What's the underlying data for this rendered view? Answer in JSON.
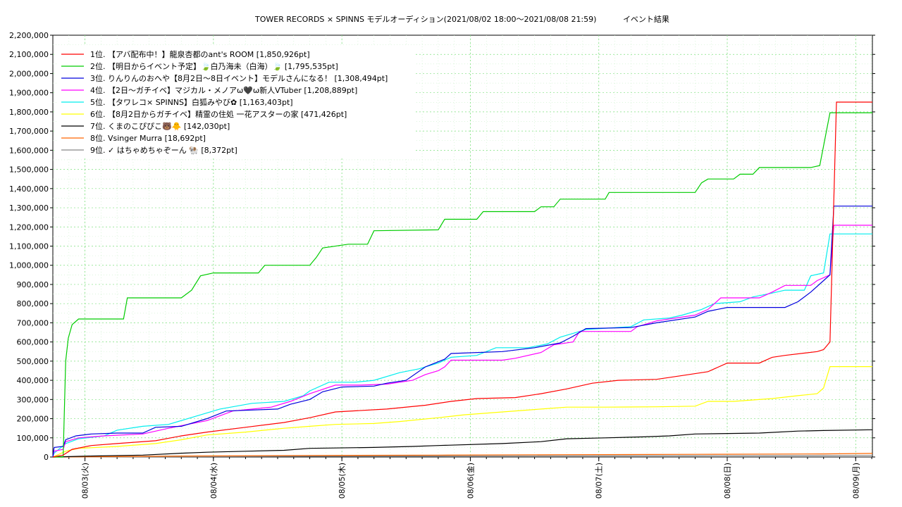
{
  "chart_data": {
    "type": "line",
    "title": "TOWER RECORDS × SPINNS モデルオーディション(2021/08/02 18:00〜2021/08/08 21:59)",
    "subtitle": "イベント結果",
    "xlabel": "",
    "ylabel": "",
    "xlim": [
      0,
      6.38
    ],
    "ylim": [
      0,
      2200000
    ],
    "y_ticks": [
      "0",
      "100,000",
      "200,000",
      "300,000",
      "400,000",
      "500,000",
      "600,000",
      "700,000",
      "800,000",
      "900,000",
      "1,000,000",
      "1,100,000",
      "1,200,000",
      "1,300,000",
      "1,400,000",
      "1,500,000",
      "1,600,000",
      "1,700,000",
      "1,800,000",
      "1,900,000",
      "2,000,000",
      "2,100,000",
      "2,200,000"
    ],
    "x_ticks": [
      {
        "x": 0.25,
        "label": "08/03(火)"
      },
      {
        "x": 1.25,
        "label": "08/04(水)"
      },
      {
        "x": 2.25,
        "label": "08/05(木)"
      },
      {
        "x": 3.25,
        "label": "08/06(金)"
      },
      {
        "x": 4.25,
        "label": "08/07(土)"
      },
      {
        "x": 5.25,
        "label": "08/08(日)"
      },
      {
        "x": 6.25,
        "label": "08/09(月)"
      }
    ],
    "grid": true,
    "legend_position": "top-left",
    "series": [
      {
        "name": "1位. 【アバ配布中！】龍泉杏都のant's ROOM [1,850,926pt]",
        "color": "#ff0000",
        "points": [
          [
            0,
            0
          ],
          [
            0.08,
            10000
          ],
          [
            0.15,
            40000
          ],
          [
            0.3,
            60000
          ],
          [
            0.5,
            70000
          ],
          [
            0.8,
            85000
          ],
          [
            1.0,
            110000
          ],
          [
            1.2,
            130000
          ],
          [
            1.5,
            155000
          ],
          [
            1.8,
            180000
          ],
          [
            2.0,
            205000
          ],
          [
            2.2,
            235000
          ],
          [
            2.6,
            250000
          ],
          [
            2.9,
            270000
          ],
          [
            3.1,
            290000
          ],
          [
            3.3,
            305000
          ],
          [
            3.6,
            310000
          ],
          [
            3.8,
            330000
          ],
          [
            4.0,
            355000
          ],
          [
            4.2,
            385000
          ],
          [
            4.4,
            400000
          ],
          [
            4.7,
            405000
          ],
          [
            4.9,
            425000
          ],
          [
            5.1,
            445000
          ],
          [
            5.25,
            490000
          ],
          [
            5.5,
            490000
          ],
          [
            5.6,
            520000
          ],
          [
            5.7,
            530000
          ],
          [
            5.95,
            550000
          ],
          [
            6.0,
            560000
          ],
          [
            6.05,
            600000
          ],
          [
            6.1,
            1850926
          ],
          [
            6.38,
            1850926
          ]
        ]
      },
      {
        "name": "2位. 【明日からイベント予定】🍃白乃海未（白海）🍃 [1,795,535pt]",
        "color": "#00cc00",
        "points": [
          [
            0,
            0
          ],
          [
            0.08,
            0
          ],
          [
            0.1,
            500000
          ],
          [
            0.12,
            620000
          ],
          [
            0.15,
            690000
          ],
          [
            0.2,
            720000
          ],
          [
            0.55,
            720000
          ],
          [
            0.58,
            830000
          ],
          [
            1.0,
            830000
          ],
          [
            1.08,
            870000
          ],
          [
            1.15,
            945000
          ],
          [
            1.25,
            960000
          ],
          [
            1.6,
            960000
          ],
          [
            1.65,
            1000000
          ],
          [
            2.0,
            1000000
          ],
          [
            2.05,
            1040000
          ],
          [
            2.1,
            1090000
          ],
          [
            2.3,
            1110000
          ],
          [
            2.45,
            1110000
          ],
          [
            2.5,
            1180000
          ],
          [
            3.0,
            1185000
          ],
          [
            3.05,
            1240000
          ],
          [
            3.3,
            1240000
          ],
          [
            3.35,
            1280000
          ],
          [
            3.75,
            1280000
          ],
          [
            3.8,
            1305000
          ],
          [
            3.9,
            1305000
          ],
          [
            3.95,
            1345000
          ],
          [
            4.3,
            1345000
          ],
          [
            4.33,
            1380000
          ],
          [
            5.0,
            1380000
          ],
          [
            5.05,
            1430000
          ],
          [
            5.1,
            1450000
          ],
          [
            5.3,
            1450000
          ],
          [
            5.35,
            1475000
          ],
          [
            5.45,
            1475000
          ],
          [
            5.5,
            1510000
          ],
          [
            5.9,
            1510000
          ],
          [
            5.97,
            1520000
          ],
          [
            6.05,
            1795535
          ],
          [
            6.38,
            1795535
          ]
        ]
      },
      {
        "name": "3位. りんりんのおへや【8月2日〜8日イベント】モデルさんになる！ [1,308,494pt]",
        "color": "#0000dd",
        "points": [
          [
            0,
            0
          ],
          [
            0.01,
            50000
          ],
          [
            0.08,
            55000
          ],
          [
            0.1,
            90000
          ],
          [
            0.18,
            110000
          ],
          [
            0.3,
            120000
          ],
          [
            0.5,
            125000
          ],
          [
            0.7,
            125000
          ],
          [
            0.8,
            155000
          ],
          [
            1.0,
            160000
          ],
          [
            1.1,
            180000
          ],
          [
            1.2,
            200000
          ],
          [
            1.35,
            240000
          ],
          [
            1.55,
            245000
          ],
          [
            1.75,
            250000
          ],
          [
            1.85,
            275000
          ],
          [
            2.0,
            300000
          ],
          [
            2.1,
            340000
          ],
          [
            2.25,
            365000
          ],
          [
            2.5,
            370000
          ],
          [
            2.6,
            385000
          ],
          [
            2.75,
            400000
          ],
          [
            2.9,
            470000
          ],
          [
            3.05,
            510000
          ],
          [
            3.1,
            540000
          ],
          [
            3.5,
            550000
          ],
          [
            3.75,
            570000
          ],
          [
            3.95,
            595000
          ],
          [
            4.05,
            630000
          ],
          [
            4.15,
            670000
          ],
          [
            4.5,
            675000
          ],
          [
            4.7,
            700000
          ],
          [
            5.0,
            730000
          ],
          [
            5.1,
            760000
          ],
          [
            5.25,
            780000
          ],
          [
            5.7,
            780000
          ],
          [
            5.8,
            810000
          ],
          [
            5.9,
            860000
          ],
          [
            6.0,
            920000
          ],
          [
            6.05,
            950000
          ],
          [
            6.08,
            1308494
          ],
          [
            6.38,
            1308494
          ]
        ]
      },
      {
        "name": "4位. 【2日〜ガチイベ】マジカル・メノアω🖤ω新人VTuber [1,208,889pt]",
        "color": "#ff00ff",
        "points": [
          [
            0,
            0
          ],
          [
            0.01,
            30000
          ],
          [
            0.08,
            40000
          ],
          [
            0.1,
            80000
          ],
          [
            0.2,
            100000
          ],
          [
            0.4,
            110000
          ],
          [
            0.7,
            120000
          ],
          [
            0.9,
            150000
          ],
          [
            1.05,
            170000
          ],
          [
            1.2,
            190000
          ],
          [
            1.4,
            240000
          ],
          [
            1.7,
            260000
          ],
          [
            1.85,
            290000
          ],
          [
            2.0,
            330000
          ],
          [
            2.2,
            375000
          ],
          [
            2.4,
            375000
          ],
          [
            2.6,
            380000
          ],
          [
            2.8,
            400000
          ],
          [
            2.9,
            430000
          ],
          [
            3.0,
            450000
          ],
          [
            3.05,
            470000
          ],
          [
            3.1,
            505000
          ],
          [
            3.5,
            505000
          ],
          [
            3.6,
            515000
          ],
          [
            3.8,
            545000
          ],
          [
            3.9,
            585000
          ],
          [
            4.05,
            600000
          ],
          [
            4.1,
            655000
          ],
          [
            4.5,
            655000
          ],
          [
            4.55,
            680000
          ],
          [
            4.7,
            710000
          ],
          [
            5.0,
            740000
          ],
          [
            5.1,
            770000
          ],
          [
            5.2,
            830000
          ],
          [
            5.5,
            830000
          ],
          [
            5.6,
            860000
          ],
          [
            5.7,
            895000
          ],
          [
            5.9,
            895000
          ],
          [
            5.95,
            920000
          ],
          [
            6.05,
            950000
          ],
          [
            6.08,
            1208889
          ],
          [
            6.38,
            1208889
          ]
        ]
      },
      {
        "name": "5位. 【タワレコ× SPINNS】白狐みやび✿ [1,163,403pt]",
        "color": "#00eeee",
        "points": [
          [
            0,
            0
          ],
          [
            0.01,
            20000
          ],
          [
            0.1,
            70000
          ],
          [
            0.2,
            95000
          ],
          [
            0.4,
            110000
          ],
          [
            0.5,
            140000
          ],
          [
            0.7,
            160000
          ],
          [
            0.9,
            170000
          ],
          [
            1.1,
            210000
          ],
          [
            1.3,
            250000
          ],
          [
            1.55,
            280000
          ],
          [
            1.8,
            290000
          ],
          [
            1.95,
            320000
          ],
          [
            2.0,
            345000
          ],
          [
            2.15,
            390000
          ],
          [
            2.35,
            390000
          ],
          [
            2.5,
            400000
          ],
          [
            2.7,
            440000
          ],
          [
            2.85,
            460000
          ],
          [
            3.0,
            490000
          ],
          [
            3.1,
            520000
          ],
          [
            3.3,
            530000
          ],
          [
            3.45,
            570000
          ],
          [
            3.7,
            570000
          ],
          [
            3.85,
            590000
          ],
          [
            3.95,
            625000
          ],
          [
            4.05,
            645000
          ],
          [
            4.15,
            665000
          ],
          [
            4.5,
            680000
          ],
          [
            4.6,
            715000
          ],
          [
            4.8,
            725000
          ],
          [
            4.9,
            740000
          ],
          [
            5.05,
            770000
          ],
          [
            5.15,
            800000
          ],
          [
            5.35,
            810000
          ],
          [
            5.45,
            835000
          ],
          [
            5.6,
            855000
          ],
          [
            5.7,
            870000
          ],
          [
            5.85,
            870000
          ],
          [
            5.9,
            945000
          ],
          [
            6.0,
            960000
          ],
          [
            6.05,
            1163403
          ],
          [
            6.38,
            1163403
          ]
        ]
      },
      {
        "name": "6位. 【8月2日からガチイベ】精霊の住処 一花アスターの家 [471,426pt]",
        "color": "#ffff00",
        "points": [
          [
            0,
            0
          ],
          [
            0.05,
            15000
          ],
          [
            0.1,
            30000
          ],
          [
            0.2,
            45000
          ],
          [
            0.5,
            55000
          ],
          [
            0.8,
            70000
          ],
          [
            1.0,
            90000
          ],
          [
            1.2,
            115000
          ],
          [
            1.5,
            130000
          ],
          [
            1.8,
            150000
          ],
          [
            2.0,
            160000
          ],
          [
            2.2,
            170000
          ],
          [
            2.5,
            175000
          ],
          [
            2.7,
            185000
          ],
          [
            3.0,
            205000
          ],
          [
            3.2,
            220000
          ],
          [
            3.5,
            235000
          ],
          [
            3.8,
            250000
          ],
          [
            4.0,
            260000
          ],
          [
            4.3,
            260000
          ],
          [
            4.7,
            262000
          ],
          [
            5.0,
            265000
          ],
          [
            5.1,
            290000
          ],
          [
            5.3,
            290000
          ],
          [
            5.6,
            305000
          ],
          [
            5.8,
            320000
          ],
          [
            5.95,
            330000
          ],
          [
            6.0,
            360000
          ],
          [
            6.05,
            471426
          ],
          [
            6.38,
            471426
          ]
        ]
      },
      {
        "name": "7位. くまのこぴぴこ🐻🐥 [142,030pt]",
        "color": "#000000",
        "points": [
          [
            0,
            0
          ],
          [
            0.3,
            5000
          ],
          [
            0.7,
            10000
          ],
          [
            1.0,
            20000
          ],
          [
            1.2,
            25000
          ],
          [
            1.5,
            30000
          ],
          [
            1.8,
            35000
          ],
          [
            2.0,
            45000
          ],
          [
            2.5,
            50000
          ],
          [
            2.8,
            55000
          ],
          [
            3.0,
            60000
          ],
          [
            3.5,
            70000
          ],
          [
            3.8,
            80000
          ],
          [
            4.0,
            95000
          ],
          [
            4.3,
            100000
          ],
          [
            4.6,
            105000
          ],
          [
            4.8,
            110000
          ],
          [
            5.0,
            120000
          ],
          [
            5.5,
            125000
          ],
          [
            5.8,
            135000
          ],
          [
            6.0,
            138000
          ],
          [
            6.38,
            142030
          ]
        ]
      },
      {
        "name": "8位. Vsinger Murra [18,692pt]",
        "color": "#ff6600",
        "points": [
          [
            0,
            0
          ],
          [
            1.0,
            5000
          ],
          [
            2.0,
            8000
          ],
          [
            3.0,
            10000
          ],
          [
            4.0,
            12000
          ],
          [
            5.0,
            14000
          ],
          [
            6.0,
            16000
          ],
          [
            6.38,
            18692
          ]
        ]
      },
      {
        "name": "9位. ✓ はちゃめちゃぞーん 🐏 [8,372pt]",
        "color": "#888888",
        "points": [
          [
            0,
            0
          ],
          [
            1.0,
            2000
          ],
          [
            2.0,
            4000
          ],
          [
            3.0,
            5000
          ],
          [
            4.0,
            6000
          ],
          [
            5.0,
            7000
          ],
          [
            6.38,
            8372
          ]
        ]
      }
    ]
  }
}
